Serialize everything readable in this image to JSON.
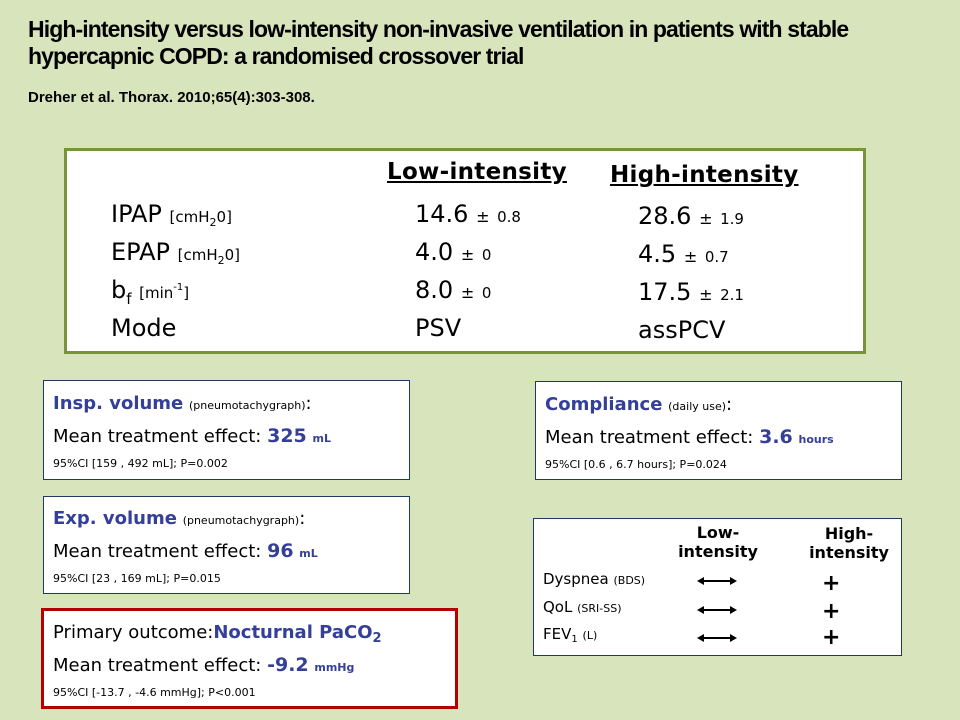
{
  "title": "High-intensity versus low-intensity non-invasive ventilation in patients with stable hypercapnic COPD: a randomised crossover trial",
  "citation": "Dreher et al. Thorax. 2010;65(4):303-308.",
  "settings": {
    "col_low": "Low-intensity",
    "col_high": "High-intensity",
    "pm": "±",
    "rows": [
      {
        "label": "IPAP",
        "unit_open": "[cmH",
        "unit_sub": "2",
        "unit_close": "0]",
        "low": "14.6",
        "low_sd": "0.8",
        "high": "28.6",
        "high_sd": "1.9"
      },
      {
        "label": "EPAP",
        "unit_open": "[cmH",
        "unit_sub": "2",
        "unit_close": "0]",
        "low": "4.0",
        "low_sd": "0",
        "high": "4.5",
        "high_sd": "0.7"
      },
      {
        "label": "b",
        "label_sub": "f",
        "unit_open": "[min",
        "unit_sup": "-1",
        "unit_close": "]",
        "low": "8.0",
        "low_sd": "0",
        "high": "17.5",
        "high_sd": "2.1"
      },
      {
        "label": "Mode",
        "low": "PSV",
        "high": "assPCV"
      }
    ]
  },
  "insp": {
    "name": "Insp. volume",
    "method": "(pneumotachygraph)",
    "colon": ":",
    "effect_label": "Mean treatment effect:",
    "value": "325",
    "unit": "mL",
    "ci": "95%CI [159 , 492 mL]; P=0.002"
  },
  "exp": {
    "name": "Exp. volume",
    "method": "(pneumotachygraph)",
    "colon": ":",
    "effect_label": "Mean treatment effect:",
    "value": "96",
    "unit": "mL",
    "ci": "95%CI [23 , 169 mL]; P=0.015"
  },
  "compliance": {
    "name": "Compliance",
    "method": "(daily use)",
    "colon": ":",
    "effect_label": "Mean treatment effect:",
    "value": "3.6",
    "unit": "hours",
    "ci": "95%CI [0.6 , 6.7 hours]; P=0.024"
  },
  "primary": {
    "label": "Primary outcome:",
    "name": "Nocturnal PaCO",
    "name_sub": "2",
    "effect_label": "Mean treatment effect:",
    "value": "-9.2",
    "unit": "mmHg",
    "ci": "95%CI [-13.7 , -4.6 mmHg];  P<0.001"
  },
  "outcomes": {
    "col_low_1": "Low-",
    "col_low_2": "intensity",
    "col_high_1": "High-",
    "col_high_2": "intensity",
    "rows": [
      {
        "label": "Dyspnea",
        "note": "(BDS)",
        "high": "+"
      },
      {
        "label": "QoL",
        "note": "(SRI-SS)",
        "high": "+"
      },
      {
        "label": "FEV",
        "label_sub": "1",
        "note": "(L)",
        "high": "+"
      }
    ],
    "low_symbol": "no-change-double-arrow-icon",
    "colors": {
      "accent": "#333f99",
      "green_border": "#77933c",
      "red_border": "#b30000",
      "background": "#d8e4bc"
    }
  }
}
